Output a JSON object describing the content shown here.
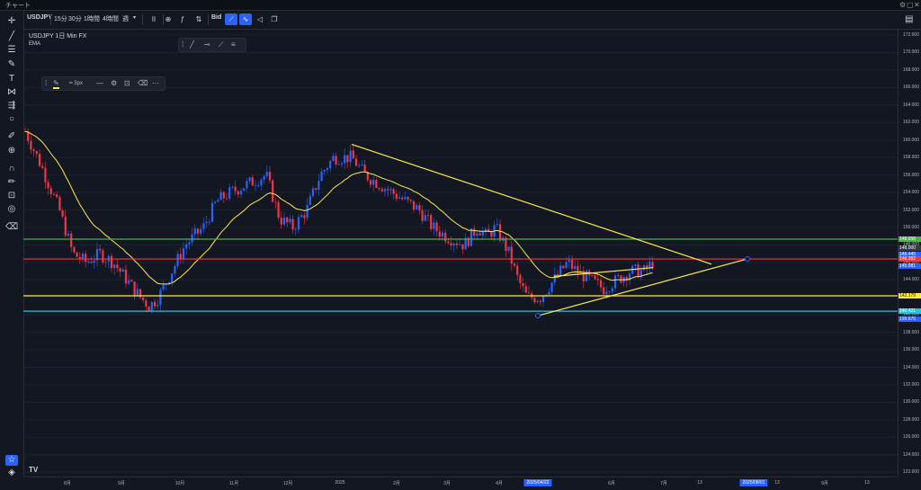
{
  "window": {
    "title": "チャート"
  },
  "toolbar": {
    "symbol": "USDJPY",
    "intervals": [
      "15分",
      "30分",
      "1時間",
      "4時間",
      "週"
    ],
    "price_side": "Bid"
  },
  "legend": {
    "line1": "USDJPY  1日  Min FX",
    "line2": "EMA"
  },
  "drawing_toolbar": {
    "width_label": "3px"
  },
  "colors": {
    "background": "#131722",
    "candle_up": "#2962ff",
    "candle_down": "#f23645",
    "ema": "#ffe94d",
    "trendline": "#ffe94d",
    "line_green": "#4caf50",
    "line_red": "#f23645",
    "line_yellow": "#ffeb3b",
    "line_cyan": "#26c6da",
    "accent": "#2962ff"
  },
  "y_axis": {
    "ticks": [
      "172.000",
      "170.000",
      "168.000",
      "166.000",
      "164.000",
      "162.000",
      "160.000",
      "158.000",
      "156.000",
      "154.000",
      "152.000",
      "150.000",
      "148.000",
      "146.000",
      "144.000",
      "142.000",
      "140.000",
      "138.000",
      "136.000",
      "134.000",
      "132.000",
      "130.000",
      "128.000",
      "126.000",
      "124.000",
      "122.000"
    ],
    "tags": [
      {
        "label": "148.658",
        "color": "#4caf50"
      },
      {
        "label": "148.000",
        "color": "#363a45"
      },
      {
        "label": "146.445",
        "color": "#2962ff"
      },
      {
        "label": "146.392",
        "color": "#f23645"
      },
      {
        "label": "145.981",
        "color": "#2962ff"
      },
      {
        "label": "142.179",
        "color": "#ffeb3b"
      },
      {
        "label": "140.421",
        "color": "#26c6da"
      },
      {
        "label": "139.675",
        "color": "#2962ff"
      }
    ]
  },
  "x_axis": {
    "ticks": [
      "8月",
      "9月",
      "10月",
      "11月",
      "12月",
      "2025",
      "2月",
      "3月",
      "4月",
      "6月",
      "7月",
      "13",
      "13",
      "9月",
      "13"
    ],
    "tags": [
      "2025/04/22",
      "2025/08/01"
    ]
  },
  "icons": {
    "left_tools": [
      "crosshair-icon",
      "trendline-icon",
      "fib-icon",
      "brush-icon",
      "text-icon",
      "pattern-icon",
      "measure-icon",
      "circle-icon",
      "ruler-icon",
      "zoom-icon",
      "magnet-icon",
      "lock-draw-icon",
      "lock-icon",
      "eye-icon",
      "trash-icon"
    ]
  }
}
